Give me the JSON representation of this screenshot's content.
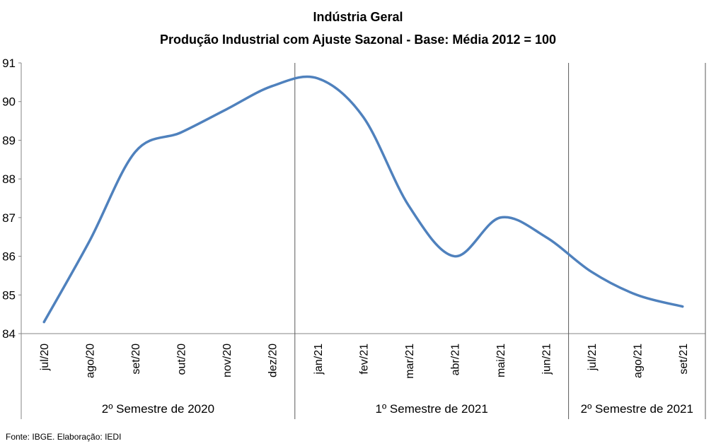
{
  "source_note": "Fonte: IBGE. Elaboração: IEDI",
  "chart_data": {
    "type": "line",
    "title": "Indústria Geral",
    "subtitle": "Produção Industrial com Ajuste Sazonal - Base: Média 2012 = 100",
    "xlabel": "",
    "ylabel": "",
    "ylim": [
      84,
      91
    ],
    "yticks": [
      "84",
      "85",
      "86",
      "87",
      "88",
      "89",
      "90",
      "91"
    ],
    "grid": false,
    "categories": [
      "jul/20",
      "ago/20",
      "set/20",
      "out/20",
      "nov/20",
      "dez/20",
      "jan/21",
      "fev/21",
      "mar/21",
      "abr/21",
      "mai/21",
      "jun/21",
      "jul/21",
      "ago/21",
      "set/21"
    ],
    "series": [
      {
        "name": "",
        "color": "#4F81BD",
        "values": [
          84.3,
          86.4,
          88.7,
          89.2,
          89.8,
          90.4,
          90.6,
          89.6,
          87.3,
          86.0,
          87.0,
          86.5,
          85.6,
          85.0,
          84.7
        ]
      }
    ],
    "groups": [
      {
        "label": "2º Semestre de 2020",
        "span": 6
      },
      {
        "label": "1º Semestre de 2021",
        "span": 6
      },
      {
        "label": "2º Semestre de 2021",
        "span": 3
      }
    ]
  }
}
